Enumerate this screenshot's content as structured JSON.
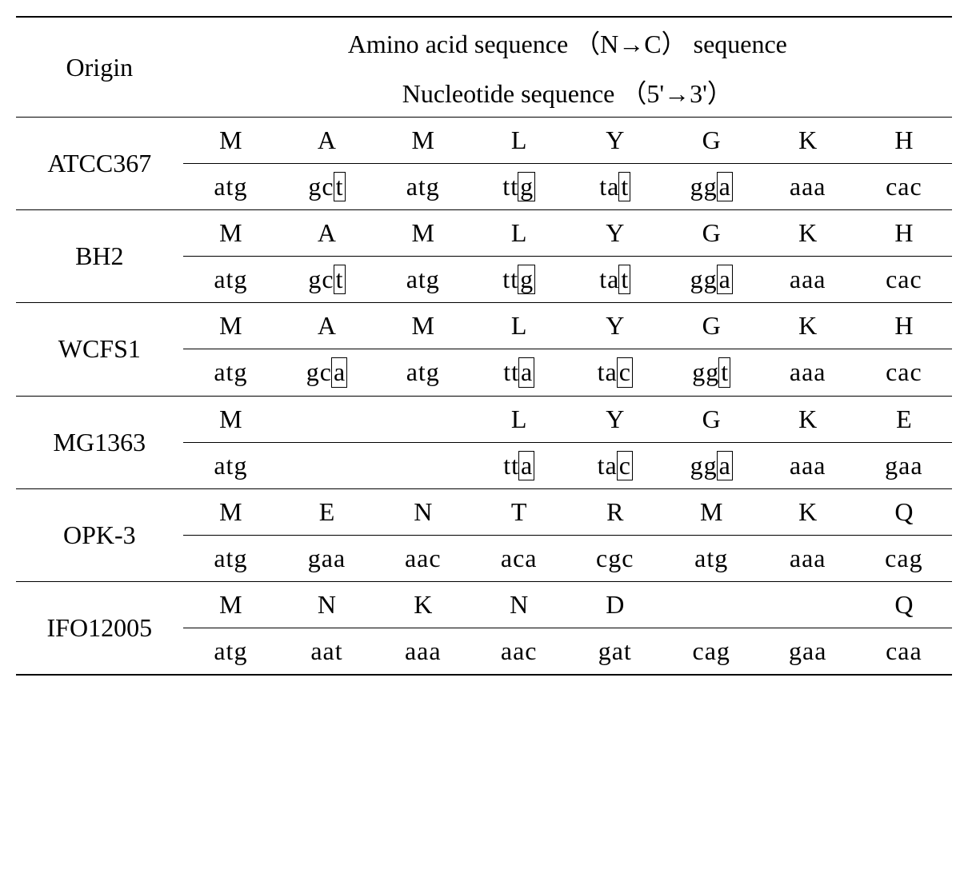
{
  "header": {
    "origin_label": "Origin",
    "title_line1": "Amino acid sequence （N→C） sequence",
    "title_line2": "Nucleotide sequence （5'→3'）"
  },
  "rows": [
    {
      "origin": "ATCC367",
      "aa": [
        "M",
        "A",
        "M",
        "L",
        "Y",
        "G",
        "K",
        "H"
      ],
      "nt": [
        {
          "pre": "atg",
          "box": ""
        },
        {
          "pre": "gc",
          "box": "t"
        },
        {
          "pre": "atg",
          "box": ""
        },
        {
          "pre": "tt",
          "box": "g"
        },
        {
          "pre": "ta",
          "box": "t"
        },
        {
          "pre": "gg",
          "box": "a"
        },
        {
          "pre": "aaa",
          "box": ""
        },
        {
          "pre": "cac",
          "box": ""
        }
      ]
    },
    {
      "origin": "BH2",
      "aa": [
        "M",
        "A",
        "M",
        "L",
        "Y",
        "G",
        "K",
        "H"
      ],
      "nt": [
        {
          "pre": "atg",
          "box": ""
        },
        {
          "pre": "gc",
          "box": "t"
        },
        {
          "pre": "atg",
          "box": ""
        },
        {
          "pre": "tt",
          "box": "g"
        },
        {
          "pre": "ta",
          "box": "t"
        },
        {
          "pre": "gg",
          "box": "a"
        },
        {
          "pre": "aaa",
          "box": ""
        },
        {
          "pre": "cac",
          "box": ""
        }
      ]
    },
    {
      "origin": "WCFS1",
      "aa": [
        "M",
        "A",
        "M",
        "L",
        "Y",
        "G",
        "K",
        "H"
      ],
      "nt": [
        {
          "pre": "atg",
          "box": ""
        },
        {
          "pre": "gc",
          "box": "a"
        },
        {
          "pre": "atg",
          "box": ""
        },
        {
          "pre": "tt",
          "box": "a"
        },
        {
          "pre": "ta",
          "box": "c"
        },
        {
          "pre": "gg",
          "box": "t"
        },
        {
          "pre": "aaa",
          "box": ""
        },
        {
          "pre": "cac",
          "box": ""
        }
      ]
    },
    {
      "origin": "MG1363",
      "aa": [
        "M",
        "",
        "",
        "L",
        "Y",
        "G",
        "K",
        "E"
      ],
      "nt": [
        {
          "pre": "atg",
          "box": ""
        },
        {
          "pre": "",
          "box": ""
        },
        {
          "pre": "",
          "box": ""
        },
        {
          "pre": "tt",
          "box": "a"
        },
        {
          "pre": "ta",
          "box": "c"
        },
        {
          "pre": "gg",
          "box": "a"
        },
        {
          "pre": "aaa",
          "box": ""
        },
        {
          "pre": "gaa",
          "box": ""
        }
      ]
    },
    {
      "origin": "OPK-3",
      "aa": [
        "M",
        "E",
        "N",
        "T",
        "R",
        "M",
        "K",
        "Q"
      ],
      "nt": [
        {
          "pre": "atg",
          "box": ""
        },
        {
          "pre": "gaa",
          "box": ""
        },
        {
          "pre": "aac",
          "box": ""
        },
        {
          "pre": "aca",
          "box": ""
        },
        {
          "pre": "cgc",
          "box": ""
        },
        {
          "pre": "atg",
          "box": ""
        },
        {
          "pre": "aaa",
          "box": ""
        },
        {
          "pre": "cag",
          "box": ""
        }
      ]
    },
    {
      "origin": "IFO12005",
      "aa": [
        "M",
        "N",
        "K",
        "N",
        "D",
        "",
        "",
        "Q"
      ],
      "nt": [
        {
          "pre": "atg",
          "box": ""
        },
        {
          "pre": "aat",
          "box": ""
        },
        {
          "pre": "aaa",
          "box": ""
        },
        {
          "pre": "aac",
          "box": ""
        },
        {
          "pre": "gat",
          "box": ""
        },
        {
          "pre": "cag",
          "box": ""
        },
        {
          "pre": "gaa",
          "box": ""
        },
        {
          "pre": "caa",
          "box": ""
        }
      ]
    }
  ]
}
